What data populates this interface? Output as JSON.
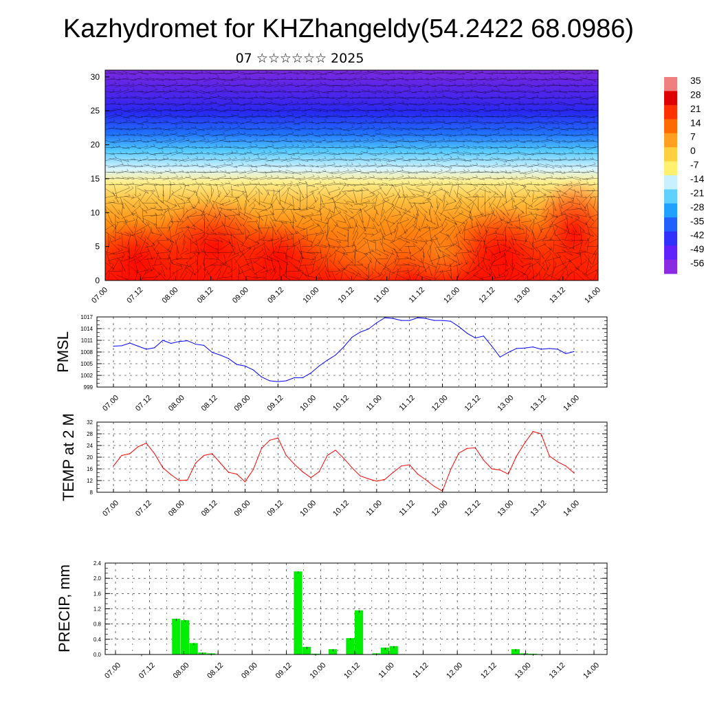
{
  "title": "Kazhydromet for KHZhangeldy(54.2422 68.0986)",
  "subtitle": "07 ☆☆☆☆☆☆ 2025",
  "colorbar": {
    "labels": [
      "35",
      "28",
      "21",
      "14",
      "7",
      "0",
      "-7",
      "-14",
      "-21",
      "-28",
      "-35",
      "-42",
      "-49",
      "-56"
    ],
    "colors": [
      "#f08080",
      "#e00000",
      "#ff3000",
      "#ff6a00",
      "#ffa020",
      "#ffd040",
      "#fff070",
      "#c8f0ff",
      "#60d0ff",
      "#20a0ff",
      "#2060ff",
      "#3030ff",
      "#6020ff",
      "#8a2be2"
    ]
  },
  "chart_data": [
    {
      "type": "heatmap",
      "name": "vertical-section",
      "x_ticks": [
        "07.00",
        "07.12",
        "08.00",
        "08.12",
        "09.00",
        "09.12",
        "10.00",
        "10.12",
        "11.00",
        "11.12",
        "12.00",
        "12.12",
        "13.00",
        "13.12",
        "14.00"
      ],
      "y_ticks": [
        "0",
        "5",
        "10",
        "15",
        "20",
        "25",
        "30"
      ],
      "ylim": [
        0,
        31
      ],
      "color_range": [
        -56,
        35
      ]
    },
    {
      "type": "line",
      "ylabel": "PMSL",
      "color": "#0000ff",
      "ylim": [
        999,
        1017
      ],
      "y_ticks": [
        "1017",
        "1014",
        "1011",
        "1008",
        "1005",
        "1002",
        "999"
      ],
      "x_ticks": [
        "07.00",
        "07.12",
        "08.00",
        "08.12",
        "09.00",
        "09.12",
        "10.00",
        "10.12",
        "11.00",
        "11.12",
        "12.00",
        "12.12",
        "13.00",
        "13.12",
        "14.00"
      ],
      "values": [
        1009.5,
        1009.6,
        1010.3,
        1009.5,
        1008.7,
        1009.1,
        1011.0,
        1010.2,
        1010.7,
        1010.9,
        1010.0,
        1009.7,
        1007.9,
        1007.2,
        1006.3,
        1004.8,
        1004.4,
        1003.4,
        1001.6,
        1000.6,
        1000.4,
        1000.6,
        1001.4,
        1001.4,
        1002.6,
        1004.4,
        1005.9,
        1007.2,
        1009.3,
        1011.8,
        1013.1,
        1013.9,
        1015.5,
        1016.8,
        1016.6,
        1016.1,
        1016.1,
        1016.8,
        1016.6,
        1016.1,
        1016.1,
        1015.9,
        1014.5,
        1012.8,
        1011.6,
        1012.1,
        1009.5,
        1006.7,
        1007.9,
        1008.9,
        1009.0,
        1009.3,
        1008.7,
        1008.9,
        1008.7,
        1007.6,
        1008.1
      ]
    },
    {
      "type": "line",
      "ylabel": "TEMP at 2 M",
      "color": "#ff0000",
      "ylim": [
        8,
        32
      ],
      "y_ticks": [
        "32",
        "28",
        "24",
        "20",
        "16",
        "12",
        "8"
      ],
      "x_ticks": [
        "07.00",
        "07.12",
        "08.00",
        "08.12",
        "09.00",
        "09.12",
        "10.00",
        "10.12",
        "11.00",
        "11.12",
        "12.00",
        "12.12",
        "13.00",
        "13.12",
        "14.00"
      ],
      "values": [
        17.0,
        20.6,
        21.2,
        23.6,
        24.8,
        21.2,
        16.4,
        14.0,
        12.0,
        12.2,
        18.0,
        20.6,
        21.2,
        18.0,
        14.8,
        14.2,
        11.6,
        15.8,
        23.0,
        25.8,
        26.6,
        20.6,
        17.6,
        15.0,
        13.0,
        15.0,
        20.6,
        22.4,
        19.6,
        16.4,
        13.6,
        12.6,
        11.8,
        12.4,
        14.8,
        17.0,
        17.4,
        14.2,
        12.2,
        10.0,
        8.4,
        15.8,
        21.4,
        23.0,
        23.2,
        19.0,
        16.0,
        15.6,
        14.2,
        20.4,
        24.8,
        28.8,
        28.0,
        20.4,
        18.4,
        17.0,
        14.6
      ]
    },
    {
      "type": "bar",
      "ylabel": "PRECIP, mm",
      "color": "#00ee00",
      "ylim": [
        0,
        2.4
      ],
      "y_ticks": [
        "2.4",
        "2.0",
        "1.6",
        "1.2",
        "0.8",
        "0.4",
        "0.0"
      ],
      "x_ticks": [
        "07.00",
        "07.12",
        "08.00",
        "08.12",
        "09.00",
        "09.12",
        "10.00",
        "10.12",
        "11.00",
        "11.12",
        "12.00",
        "12.12",
        "13.00",
        "13.12",
        "14.00"
      ],
      "values": [
        0,
        0,
        0,
        0.01,
        0,
        0,
        0,
        0.94,
        0.9,
        0.3,
        0.05,
        0.03,
        0,
        0,
        0,
        0,
        0,
        0,
        0,
        0,
        0,
        2.18,
        0.2,
        0.02,
        0,
        0.14,
        0,
        0.43,
        1.16,
        0,
        0.03,
        0.18,
        0.22,
        0,
        0,
        0,
        0,
        0,
        0,
        0,
        0,
        0,
        0,
        0,
        0,
        0,
        0.14,
        0.03,
        0.02,
        0.01,
        0,
        0,
        0,
        0,
        0,
        0
      ]
    }
  ]
}
